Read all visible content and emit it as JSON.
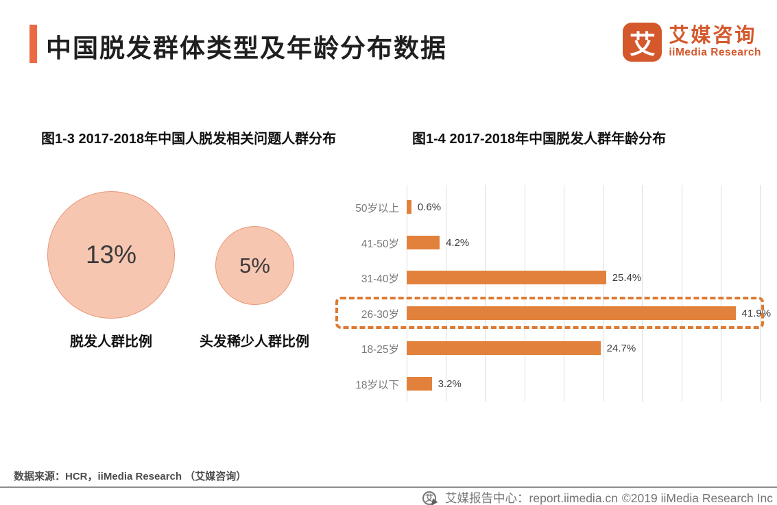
{
  "header": {
    "title": "中国脱发群体类型及年龄分布数据",
    "logo": {
      "icon_char": "艾",
      "name_cn": "艾媒咨询",
      "name_en": "iiMedia Research"
    }
  },
  "bubble_chart": {
    "title": "图1-3 2017-2018年中国人脱发相关问题人群分布",
    "bubbles": [
      {
        "value": "13%",
        "label": "脱发人群比例"
      },
      {
        "value": "5%",
        "label": "头发稀少人群比例"
      }
    ]
  },
  "bar_chart": {
    "title": "图1-4 2017-2018年中国脱发人群年龄分布",
    "rows": [
      {
        "label": "50岁以上",
        "value": 0.6,
        "value_label": "0.6%"
      },
      {
        "label": "41-50岁",
        "value": 4.2,
        "value_label": "4.2%"
      },
      {
        "label": "31-40岁",
        "value": 25.4,
        "value_label": "25.4%"
      },
      {
        "label": "26-30岁",
        "value": 41.9,
        "value_label": "41.9%"
      },
      {
        "label": "18-25岁",
        "value": 24.7,
        "value_label": "24.7%"
      },
      {
        "label": "18岁以下",
        "value": 3.2,
        "value_label": "3.2%"
      }
    ],
    "highlight_index": 3,
    "axis": {
      "min": 0,
      "max": 45,
      "step": 5
    }
  },
  "chart_data": [
    {
      "type": "bubble",
      "title": "图1-3 2017-2018年中国人脱发相关问题人群分布",
      "categories": [
        "脱发人群比例",
        "头发稀少人群比例"
      ],
      "values": [
        13,
        5
      ],
      "unit": "%"
    },
    {
      "type": "bar",
      "orientation": "horizontal",
      "title": "图1-4 2017-2018年中国脱发人群年龄分布",
      "categories": [
        "50岁以上",
        "41-50岁",
        "31-40岁",
        "26-30岁",
        "18-25岁",
        "18岁以下"
      ],
      "values": [
        0.6,
        4.2,
        25.4,
        41.9,
        24.7,
        3.2
      ],
      "unit": "%",
      "xlim": [
        0,
        45
      ],
      "gridline_step": 5,
      "grid": true,
      "legend": false,
      "highlighted_category": "26-30岁",
      "data_labels": [
        "0.6%",
        "4.2%",
        "25.4%",
        "41.9%",
        "24.7%",
        "3.2%"
      ]
    }
  ],
  "colors": {
    "accent": "#EB6A43",
    "brand": "#D4582C",
    "bar": "#E2813B",
    "bubble_fill": "#F7C6B1",
    "bubble_stroke": "#E69877",
    "highlight_border": "#DD7A33",
    "gridline": "#DCDCDC"
  },
  "footer": {
    "source": "数据来源：HCR，iiMedia Research （艾媒咨询）",
    "icon_char": "艾",
    "center_text": "艾媒报告中心：report.iimedia.cn",
    "copyright": "©2019  iiMedia Research Inc"
  }
}
